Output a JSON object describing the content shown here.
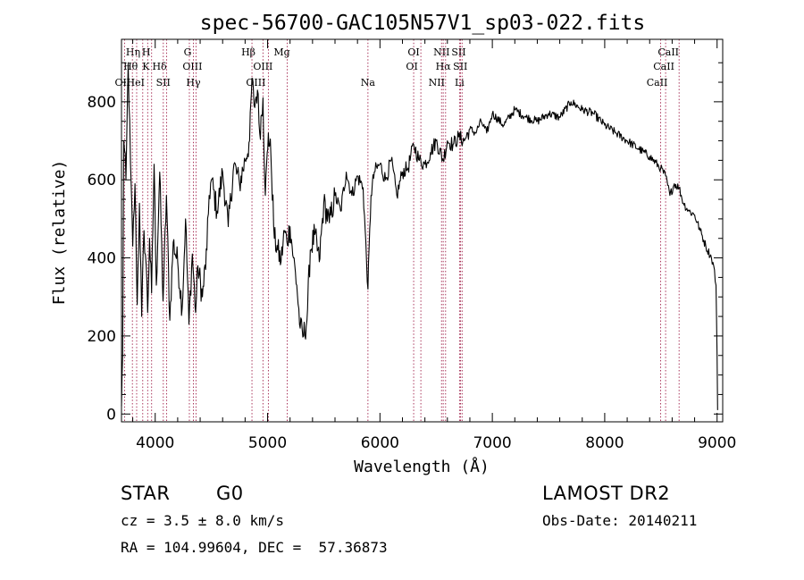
{
  "chart_data": {
    "type": "line",
    "title": "spec-56700-GAC105N57V1_sp03-022.fits",
    "xlabel": "Wavelength (Å)",
    "ylabel": "Flux (relative)",
    "xlim": [
      3700,
      9050
    ],
    "ylim": [
      -20,
      960
    ],
    "xticks": [
      4000,
      5000,
      6000,
      7000,
      8000,
      9000
    ],
    "yticks": [
      0,
      200,
      400,
      600,
      800
    ],
    "grid": false,
    "line_color": "#000000",
    "marker_color": "#a0204a",
    "series": [
      {
        "x": [
          3700,
          3710,
          3720,
          3740,
          3760,
          3780,
          3800,
          3820,
          3840,
          3860,
          3880,
          3900,
          3920,
          3933,
          3950,
          3968,
          3990,
          4010,
          4040,
          4070,
          4100,
          4130,
          4160,
          4200,
          4240,
          4270,
          4300,
          4330,
          4360,
          4380,
          4420,
          4460,
          4480,
          4500,
          4550,
          4600,
          4650,
          4700,
          4750,
          4800,
          4840,
          4861,
          4880,
          4910,
          4930,
          4959,
          4980,
          5007,
          5030,
          5060,
          5090,
          5120,
          5150,
          5172,
          5200,
          5230,
          5260,
          5290,
          5320,
          5350,
          5380,
          5420,
          5460,
          5500,
          5550,
          5600,
          5650,
          5700,
          5750,
          5800,
          5850,
          5893,
          5920,
          5950,
          6000,
          6050,
          6100,
          6150,
          6200,
          6250,
          6300,
          6350,
          6400,
          6450,
          6500,
          6563,
          6600,
          6650,
          6700,
          6750,
          6800,
          6850,
          6900,
          6950,
          7000,
          7100,
          7200,
          7300,
          7400,
          7500,
          7600,
          7700,
          7800,
          7900,
          8000,
          8100,
          8200,
          8300,
          8400,
          8498,
          8542,
          8580,
          8620,
          8662,
          8700,
          8750,
          8800,
          8850,
          8900,
          8950,
          8970,
          8990,
          9000,
          9005
        ],
        "y": [
          20,
          150,
          700,
          600,
          900,
          640,
          430,
          590,
          280,
          540,
          250,
          470,
          380,
          260,
          450,
          310,
          640,
          330,
          620,
          290,
          560,
          240,
          440,
          390,
          270,
          500,
          230,
          410,
          260,
          380,
          300,
          420,
          560,
          600,
          520,
          620,
          480,
          640,
          590,
          650,
          700,
          860,
          790,
          830,
          720,
          810,
          560,
          720,
          660,
          450,
          420,
          390,
          470,
          440,
          480,
          400,
          330,
          220,
          200,
          240,
          420,
          460,
          390,
          540,
          490,
          560,
          520,
          620,
          560,
          610,
          580,
          320,
          560,
          620,
          640,
          600,
          650,
          560,
          620,
          630,
          690,
          650,
          640,
          670,
          700,
          650,
          700,
          690,
          710,
          700,
          730,
          720,
          750,
          720,
          770,
          740,
          780,
          760,
          750,
          770,
          760,
          800,
          780,
          770,
          740,
          720,
          700,
          680,
          660,
          630,
          610,
          560,
          590,
          580,
          540,
          520,
          510,
          470,
          430,
          400,
          380,
          330,
          150,
          10
        ]
      }
    ],
    "line_markers": [
      {
        "label": "OII",
        "x": 3727,
        "row": 3,
        "dx": -2
      },
      {
        "label": "Hη",
        "x": 3835,
        "row": 1,
        "dx": -4
      },
      {
        "label": "Hθ",
        "x": 3797,
        "row": 2,
        "dx": -2
      },
      {
        "label": "HeI",
        "x": 3889,
        "row": 3,
        "dx": -8
      },
      {
        "label": "K",
        "x": 3933,
        "row": 2,
        "dx": -2
      },
      {
        "label": "H",
        "x": 3968,
        "row": 1,
        "dx": -6
      },
      {
        "label": "Hδ",
        "x": 4102,
        "row": 2,
        "dx": -8
      },
      {
        "label": "SII",
        "x": 4072,
        "row": 3,
        "dx": 0
      },
      {
        "label": "G",
        "x": 4304,
        "row": 1,
        "dx": -2
      },
      {
        "label": "OIII",
        "x": 4363,
        "row": 2,
        "dx": -4
      },
      {
        "label": "Hγ",
        "x": 4340,
        "row": 3,
        "dx": 0
      },
      {
        "label": "Hβ",
        "x": 4861,
        "row": 1,
        "dx": -4
      },
      {
        "label": "OIII",
        "x": 4959,
        "row": 2,
        "dx": 0
      },
      {
        "label": "OIII",
        "x": 5007,
        "row": 3,
        "dx": -14
      },
      {
        "label": "Mg",
        "x": 5175,
        "row": 1,
        "dx": -6
      },
      {
        "label": "Na",
        "x": 5893,
        "row": 3,
        "dx": 0
      },
      {
        "label": "OI",
        "x": 6300,
        "row": 1,
        "dx": 0
      },
      {
        "label": "OI",
        "x": 6364,
        "row": 2,
        "dx": -10
      },
      {
        "label": "NII",
        "x": 6548,
        "row": 1,
        "dx": 0
      },
      {
        "label": "SII",
        "x": 6717,
        "row": 1,
        "dx": -2
      },
      {
        "label": "Hα",
        "x": 6563,
        "row": 2,
        "dx": 0
      },
      {
        "label": "SII",
        "x": 6731,
        "row": 2,
        "dx": -2
      },
      {
        "label": "NII",
        "x": 6584,
        "row": 3,
        "dx": -10
      },
      {
        "label": "Li",
        "x": 6708,
        "row": 3,
        "dx": 0
      },
      {
        "label": "CaII",
        "x": 8662,
        "row": 1,
        "dx": -12
      },
      {
        "label": "CaII",
        "x": 8542,
        "row": 2,
        "dx": -2
      },
      {
        "label": "CaII",
        "x": 8498,
        "row": 3,
        "dx": -4
      }
    ]
  },
  "info": {
    "object_class": "STAR",
    "subclass": "G0",
    "redshift": "cz = 3.5 ± 8.0 km/s",
    "coordinates": "RA = 104.99604, DEC =  57.36873",
    "survey": "LAMOST DR2",
    "obs_date": "Obs-Date: 20140211"
  }
}
